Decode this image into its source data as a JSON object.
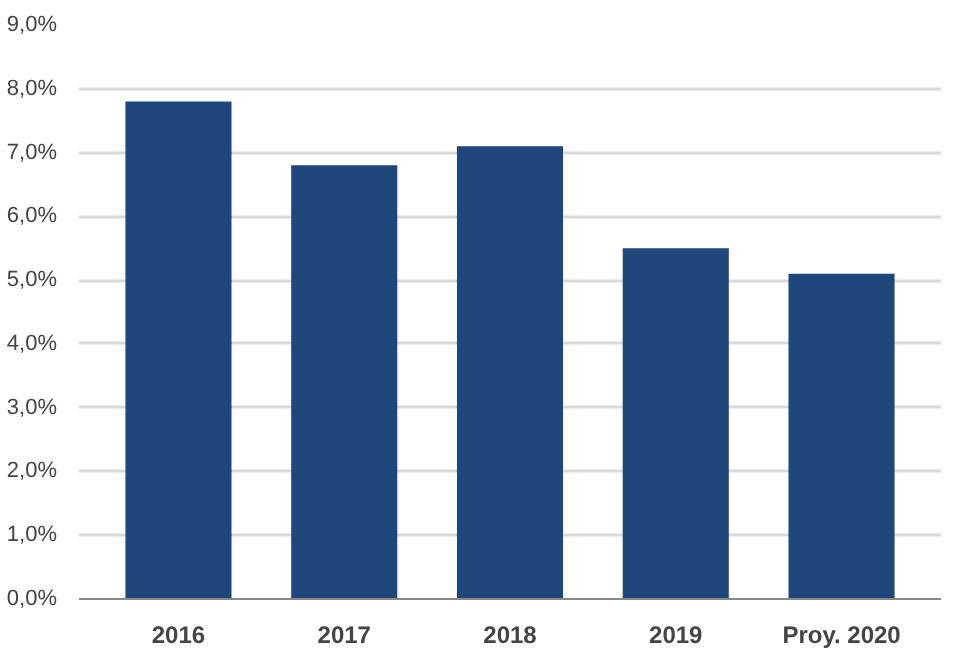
{
  "chart_data": {
    "type": "bar",
    "categories": [
      "2016",
      "2017",
      "2018",
      "2019",
      "Proy. 2020"
    ],
    "values": [
      7.8,
      6.8,
      7.1,
      5.5,
      5.1
    ],
    "color": "#1f477b",
    "ylim": [
      0,
      9
    ],
    "yticks": [
      {
        "value": 0,
        "label": "0,0%"
      },
      {
        "value": 1,
        "label": "1,0%"
      },
      {
        "value": 2,
        "label": "2,0%"
      },
      {
        "value": 3,
        "label": "3,0%"
      },
      {
        "value": 4,
        "label": "4,0%"
      },
      {
        "value": 5,
        "label": "5,0%"
      },
      {
        "value": 6,
        "label": "6,0%"
      },
      {
        "value": 7,
        "label": "7,0%"
      },
      {
        "value": 8,
        "label": "8,0%"
      },
      {
        "value": 9,
        "label": "9,0%"
      }
    ],
    "grid": "y"
  }
}
